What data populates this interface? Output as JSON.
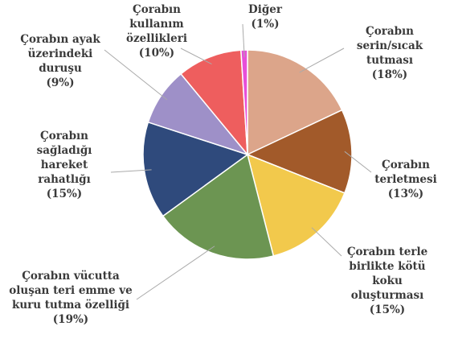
{
  "chart_data": {
    "type": "pie",
    "categories": [
      "Çorabın serin/sıcak tutması",
      "Çorabın terletmesi",
      "Çorabın terle birlikte kötü koku oluşturması",
      "Çorabın vücutta oluşan teri emme ve kuru tutma özelliği",
      "Çorabın sağladığı hareket rahatlığı",
      "Çorabın ayak üzerindeki duruşu",
      "Çorabın kullanım özellikleri",
      "Diğer"
    ],
    "values": [
      18,
      13,
      15,
      19,
      15,
      9,
      10,
      1
    ],
    "value_labels": [
      "(18%)",
      "(13%)",
      "(15%)",
      "(19%)",
      "(15%)",
      "(9%)",
      "(10%)",
      "(1%)"
    ],
    "colors": [
      "#dca58a",
      "#a25a2a",
      "#f2c94c",
      "#6c9552",
      "#2f4a7c",
      "#9e90c8",
      "#ee5e5e",
      "#e84fd8"
    ]
  }
}
